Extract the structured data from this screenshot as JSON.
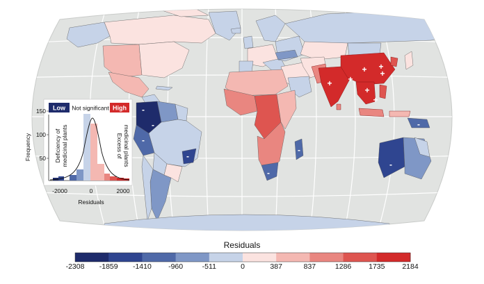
{
  "map": {
    "colorbar_title": "Residuals",
    "colorbar_ticks": [
      "-2308",
      "-1859",
      "-1410",
      "-960",
      "-511",
      "0",
      "387",
      "837",
      "1286",
      "1735",
      "2184"
    ],
    "colorbar_colors": [
      "#1e2b6b",
      "#2f4590",
      "#4f69a8",
      "#7f97c6",
      "#c6d3e8",
      "#fbe3e0",
      "#f4b8b2",
      "#e98680",
      "#de5550",
      "#d32a2a"
    ],
    "low_marker": "-",
    "high_marker": "+"
  },
  "inset": {
    "low_label": "Low",
    "not_sig_label": "Not significant",
    "high_label": "High",
    "ylabel": "Frequency",
    "xlabel": "Residuals",
    "yticks": [
      "50",
      "100",
      "150"
    ],
    "xticks": [
      "-2000",
      "0",
      "2000"
    ],
    "left_annotation_1": "Deficiency of",
    "left_annotation_2": "medicinal plants",
    "right_annotation_1": "Excess of",
    "right_annotation_2": "medicinal plants",
    "low_color": "#1e2b6b",
    "high_color": "#d32a2a"
  }
}
